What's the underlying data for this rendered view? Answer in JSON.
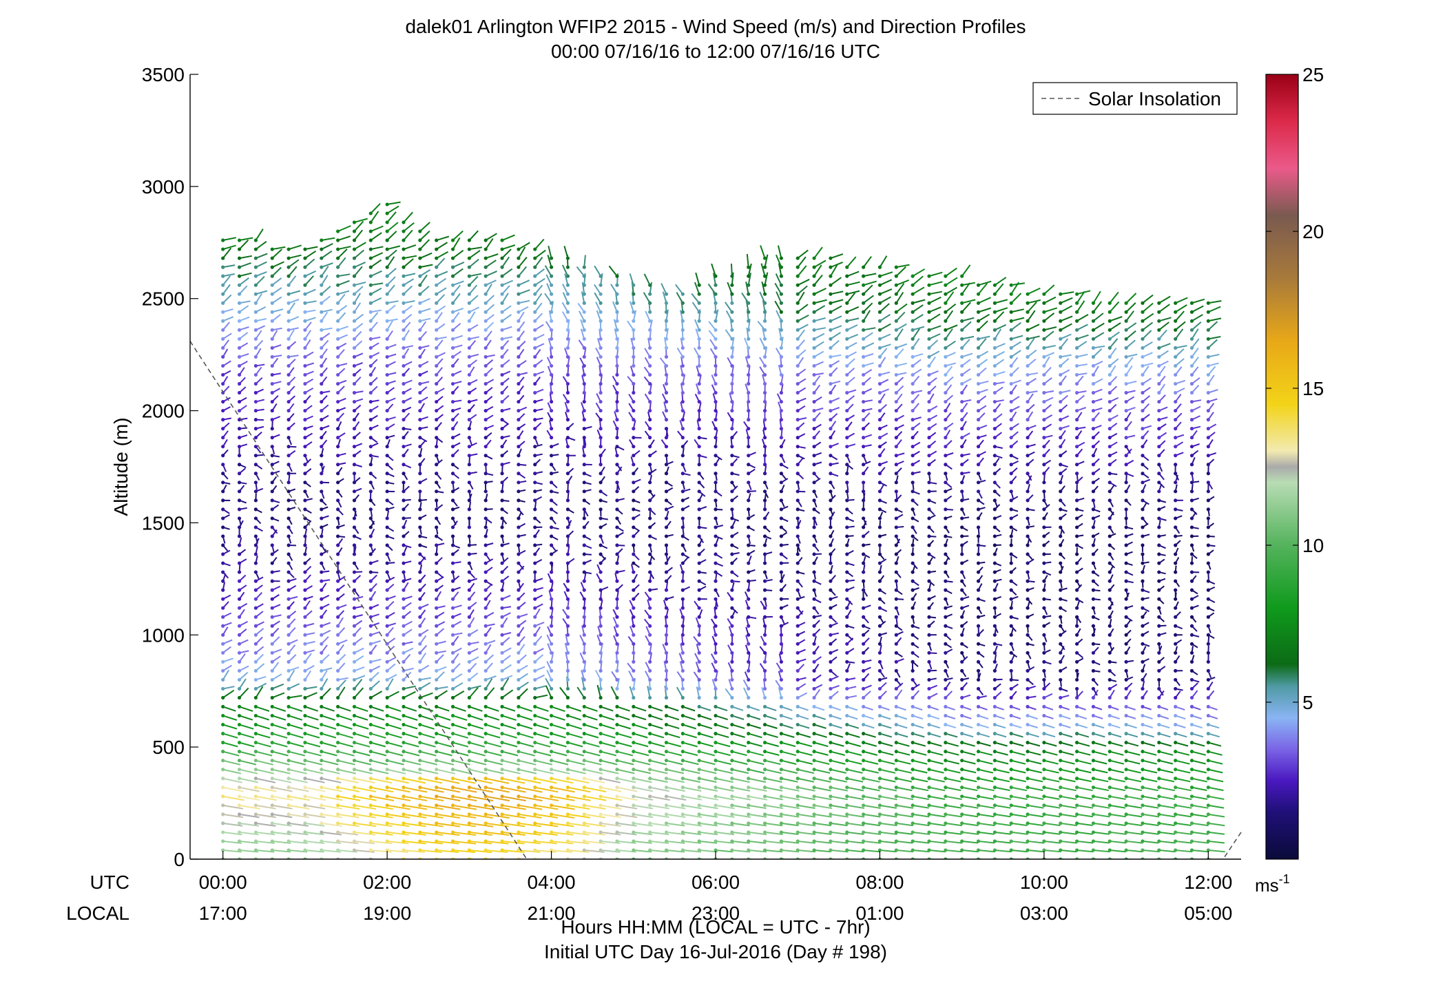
{
  "chart_data": {
    "type": "scatter",
    "title": "dalek01 Arlington WFIP2 2015 - Wind Speed (m/s) and Direction Profiles",
    "subtitle": "00:00 07/16/16 to 12:00 07/16/16  UTC",
    "ylabel": "Altitude (m)",
    "xlabel": "Hours HH:MM  (LOCAL = UTC - 7hr)",
    "footer": "Initial UTC Day 16-Jul-2016 (Day # 198)",
    "x_row_labels": {
      "utc": "UTC",
      "local": "LOCAL"
    },
    "xlim_hours": [
      -0.4,
      12.4
    ],
    "ylim": [
      0,
      3500
    ],
    "x_ticks": [
      {
        "hour": 0,
        "utc": "00:00",
        "local": "17:00"
      },
      {
        "hour": 2,
        "utc": "02:00",
        "local": "19:00"
      },
      {
        "hour": 4,
        "utc": "04:00",
        "local": "21:00"
      },
      {
        "hour": 6,
        "utc": "06:00",
        "local": "23:00"
      },
      {
        "hour": 8,
        "utc": "08:00",
        "local": "01:00"
      },
      {
        "hour": 10,
        "utc": "10:00",
        "local": "03:00"
      },
      {
        "hour": 12,
        "utc": "12:00",
        "local": "05:00"
      }
    ],
    "y_ticks": [
      0,
      500,
      1000,
      1500,
      2000,
      2500,
      3000,
      3500
    ],
    "legend": {
      "label": "Solar Insolation",
      "position": "top-right"
    },
    "solar_insolation": [
      {
        "hour": -0.4,
        "alt": 2310
      },
      {
        "hour": 3.7,
        "alt": 0
      },
      {
        "hour": 12.0,
        "alt": 0
      },
      {
        "hour": 12.4,
        "alt": 120
      }
    ],
    "colorbar": {
      "min": 0,
      "max": 25,
      "ticks": [
        5,
        10,
        15,
        20,
        25
      ],
      "unit_label": "ms",
      "unit_exponent": "-1",
      "stops": [
        {
          "v": 0.0,
          "c": "#0b0b3a"
        },
        {
          "v": 1.5,
          "c": "#1f1078"
        },
        {
          "v": 2.5,
          "c": "#4a18c0"
        },
        {
          "v": 3.5,
          "c": "#7a64e6"
        },
        {
          "v": 4.5,
          "c": "#8ab4f4"
        },
        {
          "v": 5.5,
          "c": "#4f9aa4"
        },
        {
          "v": 6.2,
          "c": "#0c6b16"
        },
        {
          "v": 8.0,
          "c": "#0f9a1c"
        },
        {
          "v": 10.0,
          "c": "#54b35c"
        },
        {
          "v": 12.0,
          "c": "#b8dcb4"
        },
        {
          "v": 12.5,
          "c": "#aaaaaa"
        },
        {
          "v": 13.0,
          "c": "#f2eab0"
        },
        {
          "v": 14.5,
          "c": "#f3d318"
        },
        {
          "v": 16.5,
          "c": "#e8a818"
        },
        {
          "v": 18.5,
          "c": "#a87a3a"
        },
        {
          "v": 20.5,
          "c": "#7a5a50"
        },
        {
          "v": 22.0,
          "c": "#ea5a8a"
        },
        {
          "v": 23.5,
          "c": "#dc2a4a"
        },
        {
          "v": 25.0,
          "c": "#9a0016"
        }
      ]
    },
    "wind_profiles": {
      "note": "Representative wind barbs: speed (m/s, colour) and direction (deg, stick orientation) vs time and altitude",
      "time_start_hour": 0,
      "time_end_hour": 12,
      "time_step_hour": 0.2,
      "alt_start_m": 0,
      "alt_step_m": 40,
      "top_altitude_by_hour": [
        [
          0,
          2780
        ],
        [
          1,
          2740
        ],
        [
          2,
          2920
        ],
        [
          2.6,
          2760
        ],
        [
          3.5,
          2760
        ],
        [
          4.3,
          2680
        ],
        [
          4.7,
          2620
        ],
        [
          5.5,
          2540
        ],
        [
          6.5,
          2680
        ],
        [
          7.5,
          2680
        ],
        [
          9.0,
          2600
        ],
        [
          10.0,
          2540
        ],
        [
          11.0,
          2500
        ],
        [
          12.0,
          2500
        ]
      ],
      "speed_layers_early": [
        [
          0,
          11
        ],
        [
          300,
          13.5
        ],
        [
          500,
          9
        ],
        [
          700,
          7
        ],
        [
          800,
          4.6
        ],
        [
          1000,
          3.5
        ],
        [
          1300,
          2
        ],
        [
          1600,
          1.5
        ],
        [
          1800,
          2
        ],
        [
          2200,
          3.2
        ],
        [
          2400,
          4.5
        ],
        [
          2550,
          5.5
        ],
        [
          2800,
          7
        ]
      ],
      "speed_layers_late": [
        [
          0,
          9.5
        ],
        [
          300,
          9
        ],
        [
          500,
          7
        ],
        [
          600,
          4.6
        ],
        [
          800,
          1.5
        ],
        [
          1400,
          1.2
        ],
        [
          1700,
          1.8
        ],
        [
          1900,
          2.8
        ],
        [
          2050,
          3.5
        ],
        [
          2200,
          4.5
        ],
        [
          2300,
          5.5
        ],
        [
          2450,
          6.8
        ],
        [
          2600,
          7
        ]
      ]
    }
  }
}
